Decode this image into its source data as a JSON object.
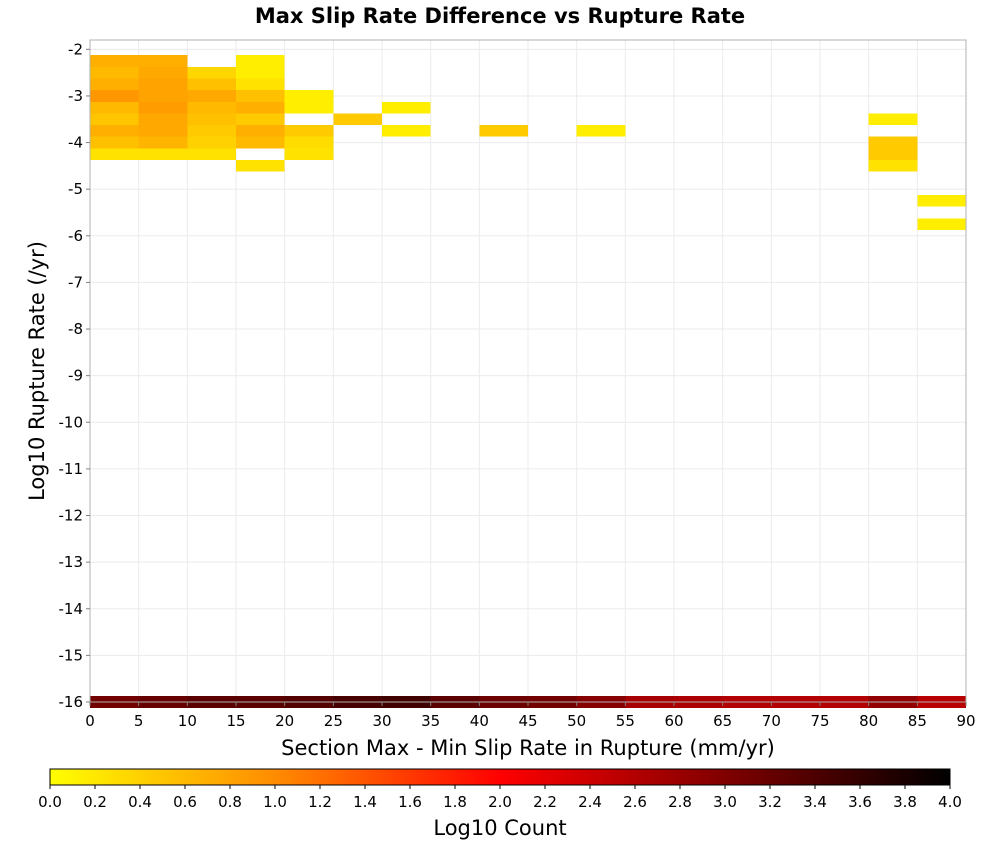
{
  "chart_data": {
    "type": "heatmap",
    "title": "Max Slip Rate Difference vs Rupture Rate",
    "xlabel": "Section Max - Min Slip Rate in Rupture (mm/yr)",
    "ylabel": "Log10 Rupture Rate (/yr)",
    "xlim": [
      0,
      90
    ],
    "ylim": [
      -16,
      -1.8
    ],
    "x_bin_width": 5,
    "y_bin_height": 0.25,
    "x_ticks": [
      "0",
      "5",
      "10",
      "15",
      "20",
      "25",
      "30",
      "35",
      "40",
      "45",
      "50",
      "55",
      "60",
      "65",
      "70",
      "75",
      "80",
      "85",
      "90"
    ],
    "y_ticks": [
      "-2",
      "-3",
      "-4",
      "-5",
      "-6",
      "-7",
      "-8",
      "-9",
      "-10",
      "-11",
      "-12",
      "-13",
      "-14",
      "-15",
      "-16"
    ],
    "grid": true,
    "colorbar": {
      "label": "Log10 Count",
      "min": 0,
      "max": 4,
      "position": "bottom",
      "ticks": [
        "0.0",
        "0.2",
        "0.4",
        "0.6",
        "0.8",
        "1.0",
        "1.2",
        "1.4",
        "1.6",
        "1.8",
        "2.0",
        "2.2",
        "2.4",
        "2.6",
        "2.8",
        "3.0",
        "3.2",
        "3.4",
        "3.6",
        "3.8",
        "4.0"
      ],
      "colors": [
        "#ffff00",
        "#ff8c00",
        "#ff0000",
        "#800000",
        "#000000"
      ]
    },
    "cells": [
      {
        "x": 0,
        "y": -2.25,
        "v": 0.7
      },
      {
        "x": 0,
        "y": -2.5,
        "v": 0.6
      },
      {
        "x": 0,
        "y": -2.75,
        "v": 0.7
      },
      {
        "x": 0,
        "y": -3.0,
        "v": 0.9
      },
      {
        "x": 0,
        "y": -3.25,
        "v": 0.6
      },
      {
        "x": 0,
        "y": -3.5,
        "v": 0.5
      },
      {
        "x": 0,
        "y": -3.75,
        "v": 0.7
      },
      {
        "x": 0,
        "y": -4.0,
        "v": 0.55
      },
      {
        "x": 0,
        "y": -4.25,
        "v": 0.25
      },
      {
        "x": 5,
        "y": -2.25,
        "v": 0.7
      },
      {
        "x": 5,
        "y": -2.5,
        "v": 0.75
      },
      {
        "x": 5,
        "y": -2.75,
        "v": 0.8
      },
      {
        "x": 5,
        "y": -3.0,
        "v": 0.8
      },
      {
        "x": 5,
        "y": -3.25,
        "v": 0.85
      },
      {
        "x": 5,
        "y": -3.5,
        "v": 0.75
      },
      {
        "x": 5,
        "y": -3.75,
        "v": 0.75
      },
      {
        "x": 5,
        "y": -4.0,
        "v": 0.65
      },
      {
        "x": 5,
        "y": -4.25,
        "v": 0.25
      },
      {
        "x": 10,
        "y": -2.5,
        "v": 0.35
      },
      {
        "x": 10,
        "y": -2.75,
        "v": 0.55
      },
      {
        "x": 10,
        "y": -3.0,
        "v": 0.75
      },
      {
        "x": 10,
        "y": -3.25,
        "v": 0.6
      },
      {
        "x": 10,
        "y": -3.5,
        "v": 0.55
      },
      {
        "x": 10,
        "y": -3.75,
        "v": 0.45
      },
      {
        "x": 10,
        "y": -4.0,
        "v": 0.4
      },
      {
        "x": 10,
        "y": -4.25,
        "v": 0.25
      },
      {
        "x": 15,
        "y": -2.25,
        "v": 0.15
      },
      {
        "x": 15,
        "y": -2.5,
        "v": 0.15
      },
      {
        "x": 15,
        "y": -2.75,
        "v": 0.25
      },
      {
        "x": 15,
        "y": -3.0,
        "v": 0.55
      },
      {
        "x": 15,
        "y": -3.25,
        "v": 0.7
      },
      {
        "x": 15,
        "y": -3.5,
        "v": 0.45
      },
      {
        "x": 15,
        "y": -3.75,
        "v": 0.7
      },
      {
        "x": 15,
        "y": -4.0,
        "v": 0.6
      },
      {
        "x": 15,
        "y": -4.5,
        "v": 0.25
      },
      {
        "x": 20,
        "y": -3.0,
        "v": 0.15
      },
      {
        "x": 20,
        "y": -3.25,
        "v": 0.15
      },
      {
        "x": 20,
        "y": -3.75,
        "v": 0.45
      },
      {
        "x": 20,
        "y": -4.0,
        "v": 0.3
      },
      {
        "x": 20,
        "y": -4.25,
        "v": 0.25
      },
      {
        "x": 25,
        "y": -3.5,
        "v": 0.45
      },
      {
        "x": 30,
        "y": -3.25,
        "v": 0.15
      },
      {
        "x": 30,
        "y": -3.75,
        "v": 0.15
      },
      {
        "x": 40,
        "y": -3.75,
        "v": 0.45
      },
      {
        "x": 50,
        "y": -3.75,
        "v": 0.15
      },
      {
        "x": 80,
        "y": -3.5,
        "v": 0.15
      },
      {
        "x": 80,
        "y": -4.0,
        "v": 0.45
      },
      {
        "x": 80,
        "y": -4.25,
        "v": 0.45
      },
      {
        "x": 80,
        "y": -4.5,
        "v": 0.25
      },
      {
        "x": 85,
        "y": -5.25,
        "v": 0.15
      },
      {
        "x": 85,
        "y": -5.75,
        "v": 0.15
      },
      {
        "x": 0,
        "y": -16.0,
        "v": 3.1
      },
      {
        "x": 5,
        "y": -16.0,
        "v": 3.2
      },
      {
        "x": 10,
        "y": -16.0,
        "v": 3.3
      },
      {
        "x": 15,
        "y": -16.0,
        "v": 3.3
      },
      {
        "x": 20,
        "y": -16.0,
        "v": 3.35
      },
      {
        "x": 25,
        "y": -16.0,
        "v": 3.45
      },
      {
        "x": 30,
        "y": -16.0,
        "v": 3.5
      },
      {
        "x": 35,
        "y": -16.0,
        "v": 3.3
      },
      {
        "x": 40,
        "y": -16.0,
        "v": 3.15
      },
      {
        "x": 45,
        "y": -16.0,
        "v": 3.1
      },
      {
        "x": 50,
        "y": -16.0,
        "v": 2.95
      },
      {
        "x": 55,
        "y": -16.0,
        "v": 2.7
      },
      {
        "x": 60,
        "y": -16.0,
        "v": 2.65
      },
      {
        "x": 65,
        "y": -16.0,
        "v": 2.6
      },
      {
        "x": 70,
        "y": -16.0,
        "v": 2.6
      },
      {
        "x": 75,
        "y": -16.0,
        "v": 2.6
      },
      {
        "x": 80,
        "y": -16.0,
        "v": 2.85
      },
      {
        "x": 85,
        "y": -16.0,
        "v": 2.55
      }
    ]
  }
}
